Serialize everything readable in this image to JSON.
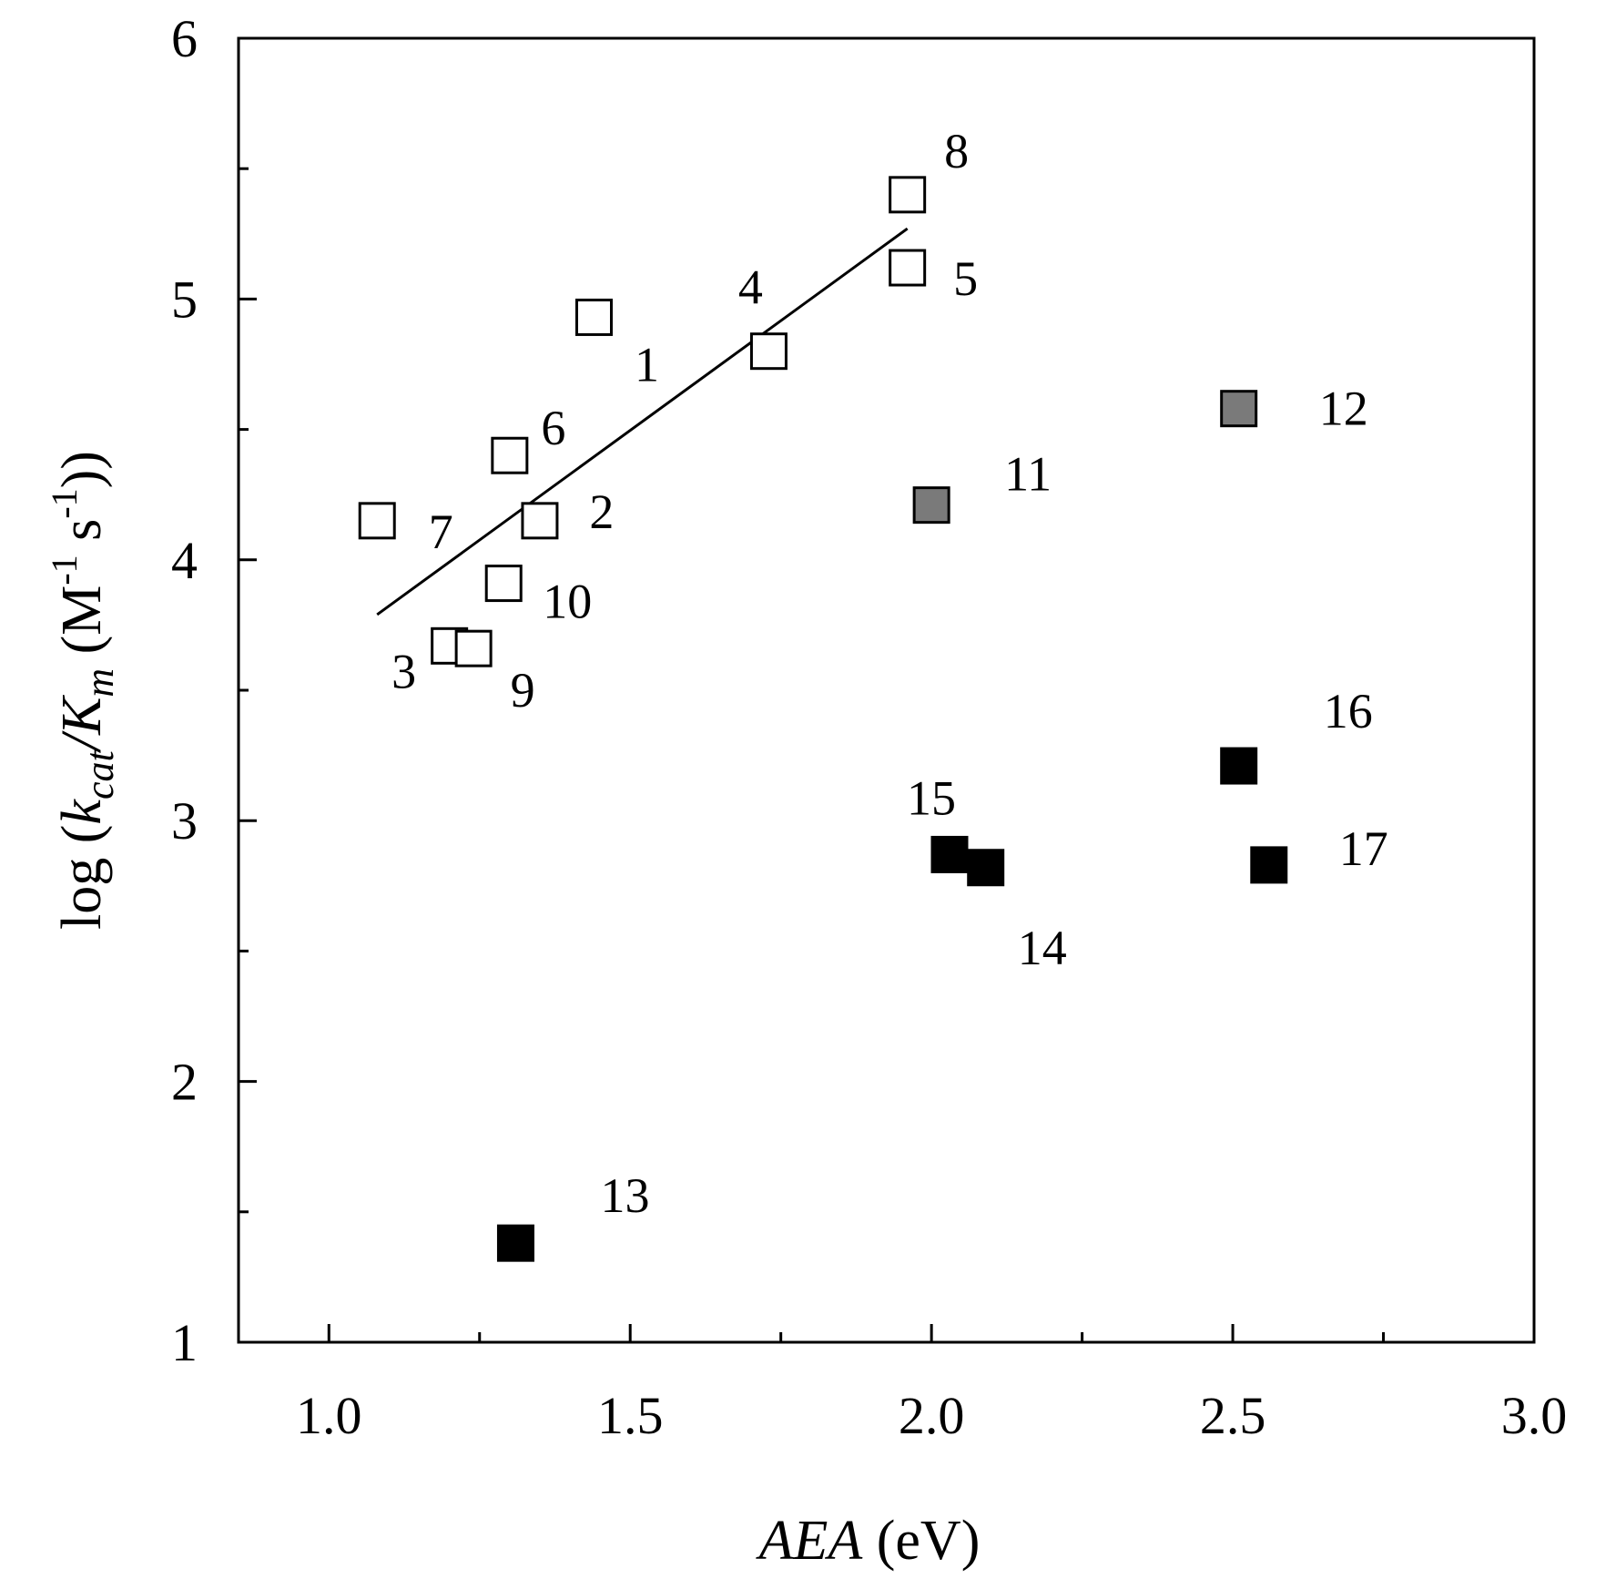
{
  "chart_data": {
    "type": "scatter",
    "title": "",
    "xlabel": {
      "var": "AEA",
      "unit": "(eV)"
    },
    "ylabel": {
      "prefix": "log (",
      "k": "k",
      "k_sub": "cat",
      "slash": "/K",
      "K_sub": "m",
      "unit": " (M",
      "exp1": "-1",
      "s": " s",
      "exp2": "-1",
      "suffix": "))"
    },
    "xlim": [
      0.85,
      3.0
    ],
    "ylim": [
      1,
      6
    ],
    "xticks": [
      "1.0",
      "1.5",
      "2.0",
      "2.5",
      "3.0"
    ],
    "xtick_values": [
      1.0,
      1.5,
      2.0,
      2.5,
      3.0
    ],
    "xminor": [
      1.25,
      1.75,
      2.25,
      2.75
    ],
    "yticks": [
      "1",
      "2",
      "3",
      "4",
      "5",
      "6"
    ],
    "ytick_values": [
      1,
      2,
      3,
      4,
      5,
      6
    ],
    "yminor": [
      1.5,
      2.5,
      3.5,
      4.5,
      5.5
    ],
    "fill_colors": {
      "open": "#ffffff",
      "gray": "#7a7a7a",
      "filled": "#000000"
    },
    "series": [
      {
        "name": "open",
        "fill": "open",
        "points": [
          {
            "label": "1",
            "x": 1.44,
            "y": 4.93
          },
          {
            "label": "2",
            "x": 1.35,
            "y": 4.15
          },
          {
            "label": "3",
            "x": 1.2,
            "y": 3.67
          },
          {
            "label": "4",
            "x": 1.73,
            "y": 4.8
          },
          {
            "label": "5",
            "x": 1.96,
            "y": 5.12
          },
          {
            "label": "6",
            "x": 1.3,
            "y": 4.4
          },
          {
            "label": "7",
            "x": 1.08,
            "y": 4.15
          },
          {
            "label": "8",
            "x": 1.96,
            "y": 5.4
          },
          {
            "label": "9",
            "x": 1.24,
            "y": 3.66
          },
          {
            "label": "10",
            "x": 1.29,
            "y": 3.91
          }
        ]
      },
      {
        "name": "gray",
        "fill": "gray",
        "points": [
          {
            "label": "11",
            "x": 2.0,
            "y": 4.21
          },
          {
            "label": "12",
            "x": 2.51,
            "y": 4.58
          }
        ]
      },
      {
        "name": "filled",
        "fill": "filled",
        "points": [
          {
            "label": "13",
            "x": 1.31,
            "y": 1.38
          },
          {
            "label": "14",
            "x": 2.09,
            "y": 2.82
          },
          {
            "label": "15",
            "x": 2.03,
            "y": 2.87
          },
          {
            "label": "16",
            "x": 2.51,
            "y": 3.21
          },
          {
            "label": "17",
            "x": 2.56,
            "y": 2.83
          }
        ]
      }
    ],
    "fit_line": {
      "x": [
        1.08,
        1.96
      ],
      "y": [
        3.79,
        5.27
      ]
    }
  }
}
